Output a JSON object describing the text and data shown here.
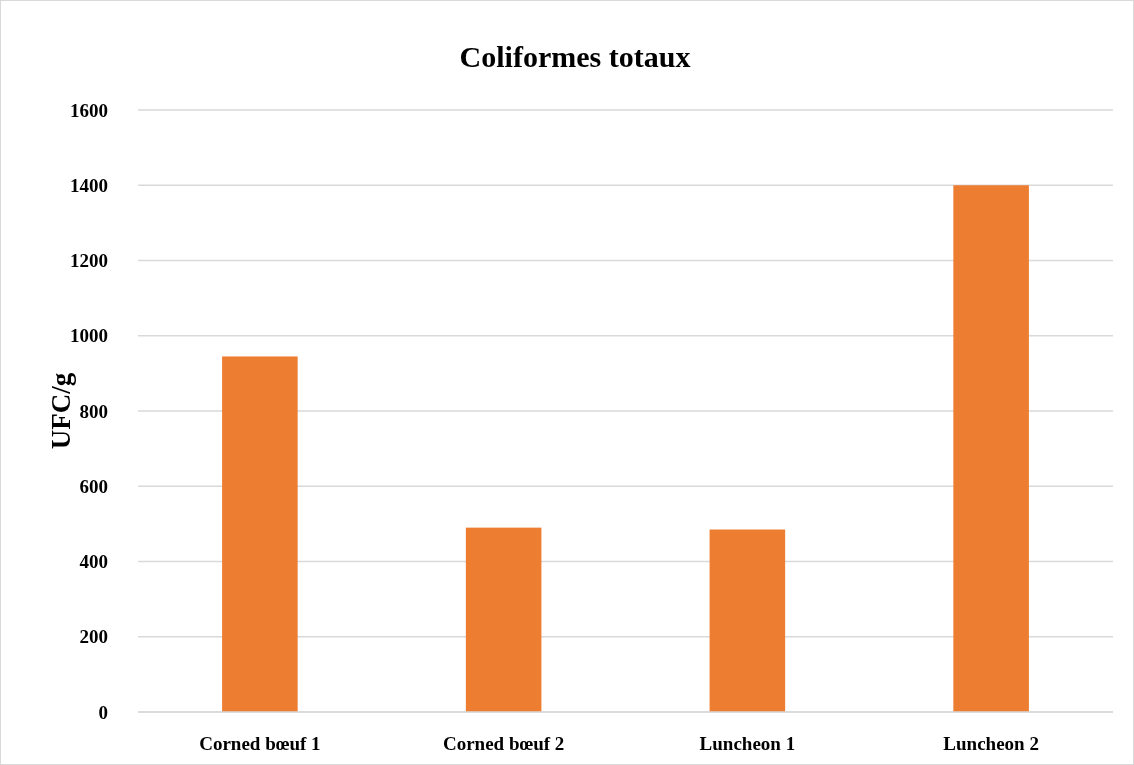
{
  "chart_data": {
    "type": "bar",
    "title": "Coliformes totaux",
    "ylabel": "UFC/g",
    "categories": [
      "Corned bœuf 1",
      "Corned bœuf 2",
      "Luncheon 1",
      "Luncheon 2"
    ],
    "values": [
      945,
      490,
      485,
      1400
    ],
    "color": "#ed7d31",
    "ylim": [
      0,
      1600
    ],
    "yticks": [
      0,
      200,
      400,
      600,
      800,
      1000,
      1200,
      1400,
      1600
    ],
    "grid": "y"
  }
}
